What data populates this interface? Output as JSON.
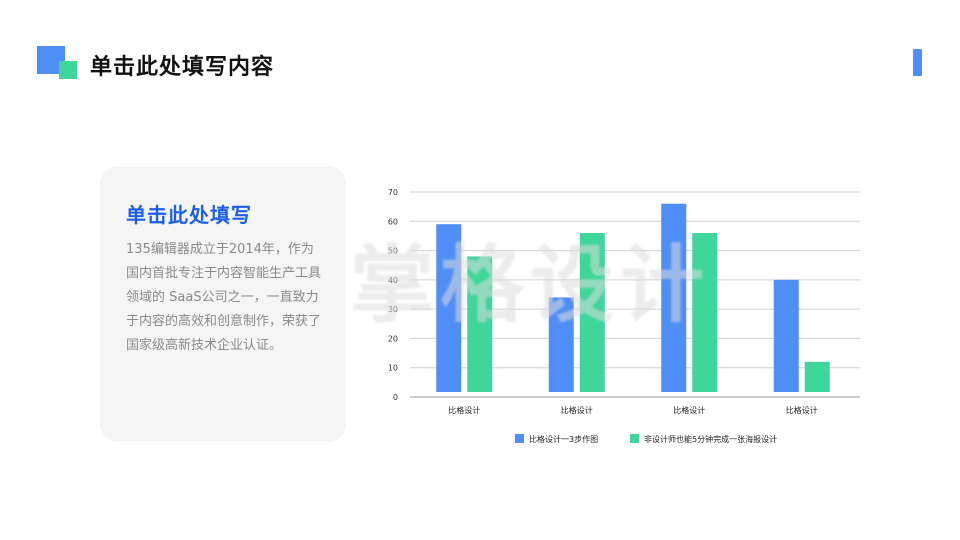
{
  "header": {
    "title": "单击此处填写内容"
  },
  "card": {
    "title": "单击此处填写",
    "body": "135编辑器成立于2014年，作为国内首批专注于内容智能生产工具领域的 SaaS公司之一，一直致力于内容的高效和创意制作，荣获了国家级高新技术企业认证。"
  },
  "watermark": {
    "text": "掌格设计"
  },
  "colors": {
    "accent_blue": "#4f8ef7",
    "accent_green": "#3ed69a",
    "title_blue": "#1a5ef0"
  },
  "chart_data": {
    "type": "bar",
    "categories": [
      "比格设计",
      "比格设计",
      "比格设计",
      "比格设计"
    ],
    "series": [
      {
        "name": "比格设计一3步作图",
        "values": [
          59,
          34,
          66,
          40
        ],
        "color": "#4f8ef7"
      },
      {
        "name": "非设计师也能5分钟完成一张海报设计",
        "values": [
          48,
          56,
          56,
          12
        ],
        "color": "#3ed69a"
      }
    ],
    "ylim": [
      0,
      70
    ],
    "yticks": [
      0,
      10,
      20,
      30,
      40,
      50,
      60,
      70
    ],
    "grid": true,
    "legend_position": "bottom"
  }
}
